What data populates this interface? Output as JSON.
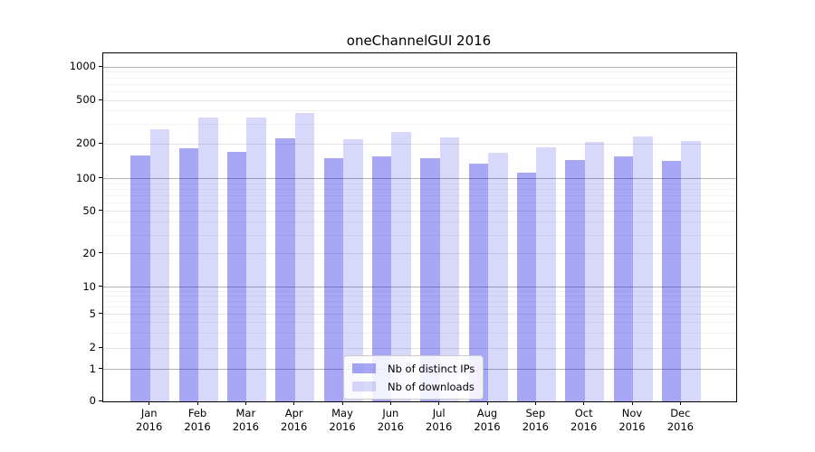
{
  "chart_data": {
    "type": "bar",
    "title": "oneChannelGUI 2016",
    "categories": [
      "Jan",
      "Feb",
      "Mar",
      "Apr",
      "May",
      "Jun",
      "Jul",
      "Aug",
      "Sep",
      "Oct",
      "Nov",
      "Dec"
    ],
    "category_year": "2016",
    "series": [
      {
        "name": "Nb of distinct IPs",
        "color": "rgba(10,10,230,0.36)",
        "values": [
          160,
          185,
          170,
          225,
          152,
          157,
          152,
          135,
          113,
          146,
          155,
          143
        ]
      },
      {
        "name": "Nb of downloads",
        "color": "rgba(10,10,230,0.16)",
        "values": [
          272,
          348,
          352,
          383,
          220,
          257,
          230,
          168,
          189,
          211,
          233,
          212
        ]
      }
    ],
    "xlabel": "",
    "ylabel": "",
    "yscale": "symlog",
    "y_ticks": [
      0,
      1,
      2,
      5,
      10,
      20,
      50,
      100,
      200,
      500,
      1000
    ],
    "y_minor_ticks": [
      3,
      4,
      6,
      7,
      8,
      9,
      30,
      40,
      60,
      70,
      80,
      90,
      300,
      400,
      600,
      700,
      800,
      900
    ],
    "ylim": [
      0,
      1300
    ],
    "grid": "horizontal, major and minor",
    "legend_position": "inside lower center",
    "colors": {
      "bar_distinct_ips_on_white": "#a8a8f6",
      "bar_downloads_on_white": "#d9d9fa",
      "grid_decade": "#b3b3b3",
      "grid_major": "#e5e5e5",
      "grid_minor": "#f3f3f3",
      "spine": "#000000",
      "background": "#ffffff"
    }
  }
}
